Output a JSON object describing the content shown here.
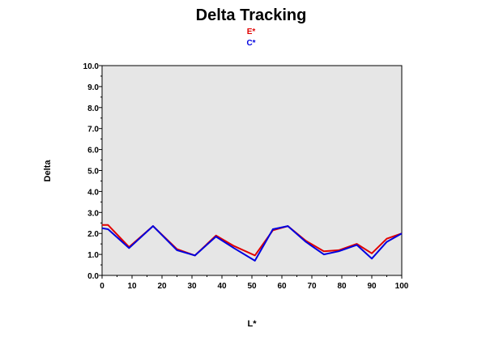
{
  "chart_data": {
    "type": "line",
    "title": "Delta Tracking",
    "xlabel": "L*",
    "ylabel": "Delta",
    "xlim": [
      0,
      100
    ],
    "ylim": [
      0,
      10
    ],
    "x_ticks": [
      "0",
      "10",
      "20",
      "30",
      "40",
      "50",
      "60",
      "70",
      "80",
      "90",
      "100"
    ],
    "y_ticks": [
      "0.0",
      "1.0",
      "2.0",
      "3.0",
      "4.0",
      "5.0",
      "6.0",
      "7.0",
      "8.0",
      "9.0",
      "10.0"
    ],
    "grid": false,
    "legend_position": "top-center",
    "plot_background": "#e6e6e6",
    "series": [
      {
        "name": "E*",
        "color": "#e00000",
        "x": [
          0,
          2,
          9,
          17,
          25,
          31,
          38,
          44,
          51,
          57,
          62,
          68,
          74,
          79,
          85,
          90,
          95,
          100
        ],
        "y": [
          2.4,
          2.4,
          1.35,
          2.35,
          1.25,
          0.95,
          1.9,
          1.4,
          0.95,
          2.15,
          2.35,
          1.65,
          1.15,
          1.2,
          1.5,
          1.05,
          1.75,
          2.0
        ]
      },
      {
        "name": "C*",
        "color": "#0000e0",
        "x": [
          0,
          2,
          9,
          17,
          25,
          31,
          38,
          44,
          51,
          57,
          62,
          68,
          74,
          79,
          85,
          90,
          95,
          100
        ],
        "y": [
          2.25,
          2.2,
          1.3,
          2.35,
          1.2,
          0.95,
          1.85,
          1.3,
          0.7,
          2.2,
          2.35,
          1.6,
          1.0,
          1.15,
          1.45,
          0.8,
          1.6,
          2.0
        ]
      }
    ]
  }
}
